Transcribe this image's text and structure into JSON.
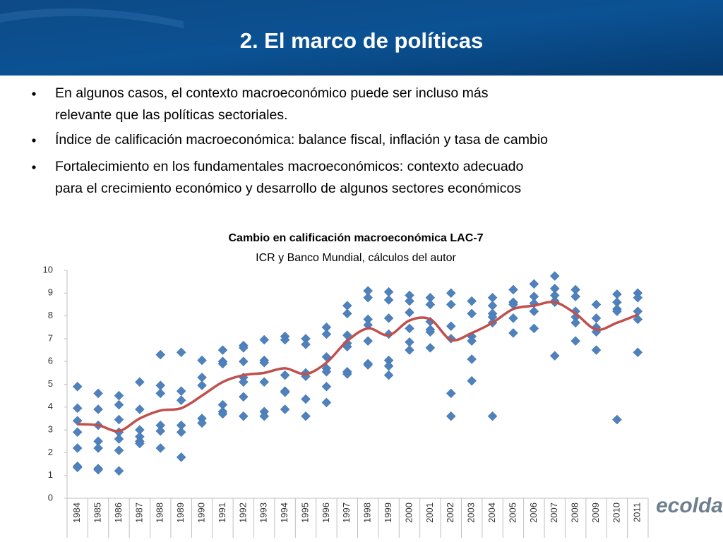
{
  "header": {
    "title": "2. El marco de políticas"
  },
  "bullets": [
    [
      "En algunos casos, el contexto macroeconómico puede ser incluso más",
      "relevante que las políticas sectoriales."
    ],
    [
      "Índice de calificación macroeconómica: balance fiscal, inflación y tasa de cambio"
    ],
    [
      "Fortalecimiento en los fundamentales macroeconómicos: contexto adecuado",
      "para el crecimiento económico y desarrollo de algunos sectores económicos"
    ]
  ],
  "logo": "ecolda",
  "chart_data": {
    "type": "scatter",
    "title": "Cambio en calificación macroeconómica LAC-7",
    "subtitle": "ICR y Banco Mundial, cálculos del autor",
    "categories": [
      "1984",
      "1985",
      "1986",
      "1987",
      "1988",
      "1989",
      "1990",
      "1991",
      "1992",
      "1993",
      "1994",
      "1995",
      "1996",
      "1997",
      "1998",
      "1999",
      "2000",
      "2001",
      "2002",
      "2003",
      "2004",
      "2005",
      "2006",
      "2007",
      "2008",
      "2009",
      "2010",
      "2011"
    ],
    "ylim": [
      0,
      10
    ],
    "yticks": [
      0,
      1,
      2,
      3,
      4,
      5,
      6,
      7,
      8,
      9,
      10
    ],
    "series": [
      {
        "type": "scatter",
        "color": "#4f81bd",
        "values": [
          [
            4.9,
            3.95,
            3.4,
            2.9,
            2.2,
            1.4,
            1.35
          ],
          [
            4.6,
            3.9,
            3.2,
            2.5,
            2.2,
            1.3,
            1.25
          ],
          [
            4.5,
            4.1,
            3.45,
            2.9,
            2.6,
            2.1,
            1.2
          ],
          [
            5.1,
            3.9,
            3.0,
            2.7,
            2.5,
            2.4
          ],
          [
            6.3,
            4.95,
            4.6,
            3.2,
            2.95,
            2.2
          ],
          [
            6.4,
            4.7,
            4.3,
            3.2,
            2.9,
            1.8
          ],
          [
            6.05,
            5.3,
            4.95,
            3.5,
            3.3
          ],
          [
            6.5,
            6.0,
            5.9,
            4.1,
            3.8,
            3.7
          ],
          [
            6.7,
            6.6,
            6.0,
            5.3,
            5.1,
            4.45,
            3.6
          ],
          [
            6.95,
            6.05,
            5.95,
            5.1,
            3.8,
            3.6
          ],
          [
            7.1,
            6.95,
            5.4,
            4.7,
            4.65,
            3.9
          ],
          [
            7.0,
            6.75,
            5.5,
            5.35,
            4.35,
            3.6
          ],
          [
            7.5,
            7.2,
            6.2,
            5.7,
            5.55,
            4.9,
            4.2
          ],
          [
            8.45,
            8.1,
            7.15,
            6.8,
            6.65,
            5.55,
            5.45
          ],
          [
            9.1,
            8.8,
            7.85,
            7.6,
            6.9,
            5.9,
            5.85
          ],
          [
            9.05,
            8.7,
            7.9,
            7.2,
            6.05,
            5.8,
            5.4
          ],
          [
            8.9,
            8.65,
            8.15,
            7.45,
            6.85,
            6.5
          ],
          [
            8.8,
            8.5,
            7.75,
            7.4,
            7.3,
            6.6
          ],
          [
            9.0,
            8.5,
            7.55,
            7.0,
            4.6,
            3.6
          ],
          [
            8.65,
            8.1,
            7.1,
            6.9,
            6.1,
            5.15
          ],
          [
            8.8,
            8.45,
            8.1,
            7.95,
            7.7,
            3.6
          ],
          [
            9.15,
            8.6,
            8.5,
            7.9,
            7.25
          ],
          [
            9.4,
            8.85,
            8.55,
            8.2,
            7.45
          ],
          [
            9.75,
            9.2,
            8.9,
            8.65,
            8.6,
            6.25
          ],
          [
            9.15,
            8.85,
            8.2,
            7.95,
            7.7,
            6.9
          ],
          [
            8.5,
            7.9,
            7.5,
            7.3,
            6.5
          ],
          [
            8.95,
            8.6,
            8.3,
            8.2,
            3.45
          ],
          [
            9.0,
            8.8,
            8.2,
            7.85,
            6.4
          ]
        ]
      },
      {
        "type": "line",
        "color": "#c0504d",
        "values": [
          3.25,
          3.2,
          2.95,
          3.5,
          3.85,
          3.95,
          4.5,
          5.1,
          5.4,
          5.5,
          5.7,
          5.45,
          5.95,
          6.9,
          7.45,
          7.15,
          7.8,
          7.85,
          6.95,
          7.25,
          7.7,
          8.3,
          8.45,
          8.6,
          8.1,
          7.4,
          7.7,
          8.05
        ]
      }
    ]
  }
}
